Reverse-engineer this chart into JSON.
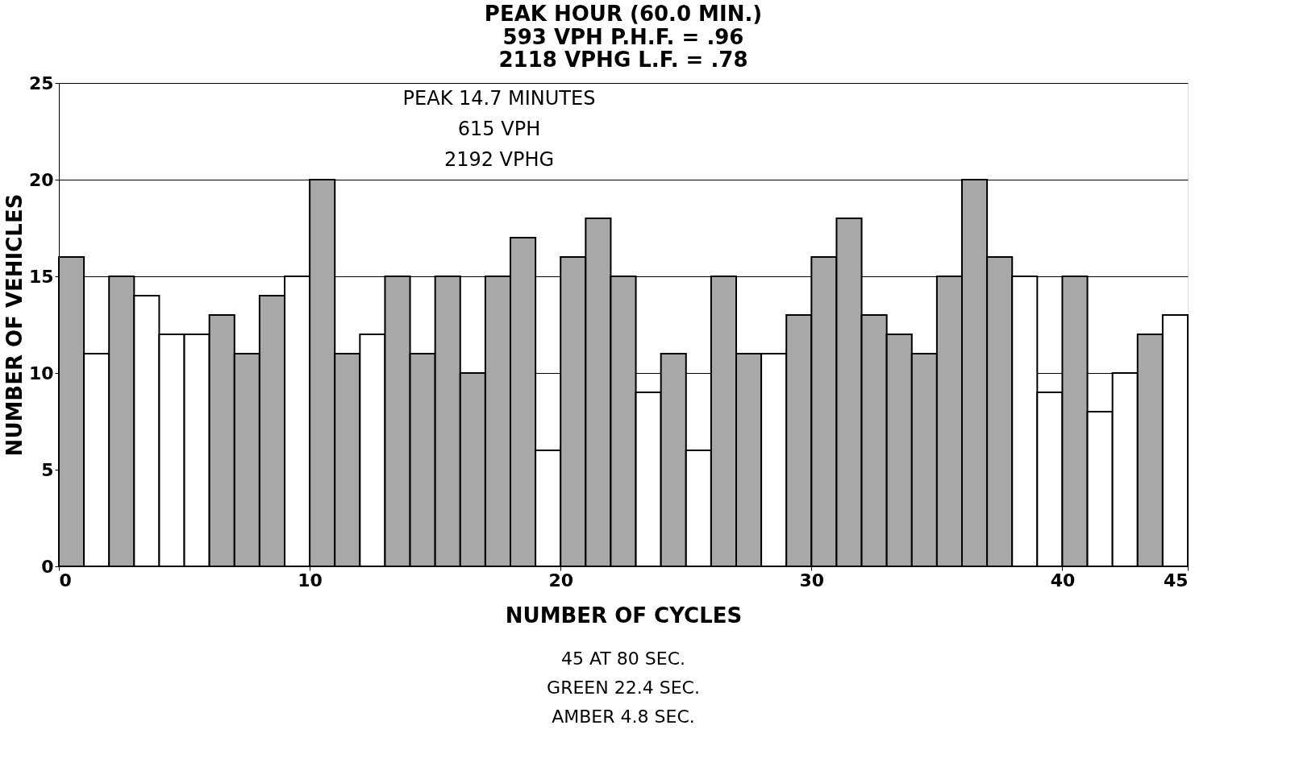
{
  "chart_data": {
    "type": "histogram",
    "title": "PEAK HOUR (60.0 MIN.)",
    "subtitle": [
      "593 VPH          P.H.F. = .96",
      "2118 VPHG          L.F. = .78"
    ],
    "xlabel": "NUMBER OF CYCLES",
    "ylabel": "NUMBER OF VEHICLES",
    "bins": [
      0,
      1,
      2,
      3,
      4,
      5,
      6,
      7,
      8,
      9,
      10,
      11,
      12,
      13,
      14,
      15,
      16,
      17,
      18,
      19,
      20,
      21,
      22,
      23,
      24,
      25,
      26,
      27,
      28,
      29,
      30,
      31,
      32,
      33,
      34,
      35,
      36,
      37,
      38,
      39,
      40,
      41,
      42,
      43,
      44,
      45
    ],
    "values": [
      16,
      11,
      15,
      14,
      12,
      12,
      13,
      11,
      14,
      15,
      20,
      11,
      12,
      15,
      11,
      15,
      10,
      15,
      17,
      6,
      16,
      18,
      15,
      9,
      11,
      6,
      15,
      11,
      11,
      13,
      16,
      18,
      13,
      12,
      11,
      15,
      20,
      16,
      15,
      9,
      15,
      8,
      10,
      12,
      13
    ],
    "colors": [
      "#a8a8a8",
      "#ffffff",
      "#a8a8a8",
      "#ffffff",
      "#ffffff",
      "#ffffff",
      "#a8a8a8",
      "#a8a8a8",
      "#a8a8a8",
      "#ffffff",
      "#a8a8a8",
      "#a8a8a8",
      "#ffffff",
      "#a8a8a8",
      "#a8a8a8",
      "#a8a8a8",
      "#a8a8a8",
      "#a8a8a8",
      "#a8a8a8",
      "#ffffff",
      "#a8a8a8",
      "#a8a8a8",
      "#a8a8a8",
      "#ffffff",
      "#a8a8a8",
      "#ffffff",
      "#a8a8a8",
      "#a8a8a8",
      "#ffffff",
      "#a8a8a8",
      "#a8a8a8",
      "#a8a8a8",
      "#a8a8a8",
      "#a8a8a8",
      "#a8a8a8",
      "#a8a8a8",
      "#a8a8a8",
      "#a8a8a8",
      "#ffffff",
      "#ffffff",
      "#a8a8a8",
      "#ffffff",
      "#ffffff",
      "#a8a8a8",
      "#ffffff"
    ],
    "xlim": [
      0,
      45
    ],
    "xticks": [
      0,
      10,
      20,
      30,
      40,
      45
    ],
    "ylim": [
      0,
      25
    ],
    "yticks": [
      0,
      5,
      10,
      15,
      20,
      25
    ],
    "grid": "y",
    "annotations": [
      "PEAK 14.7 MINUTES",
      "615 VPH",
      "2192 VPHG",
      "45 AT 80 SEC.",
      "GREEN 22.4 SEC.",
      "AMBER 4.8 SEC."
    ]
  }
}
